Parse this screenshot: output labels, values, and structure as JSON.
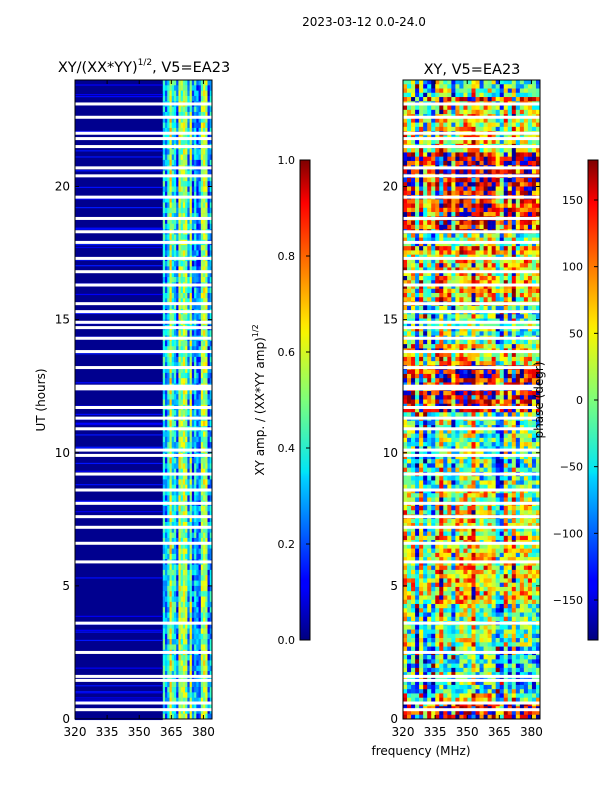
{
  "figure_title": "2023-03-12 0.0-24.0",
  "shared_xlabel": "frequency (MHz)",
  "chart_data": [
    {
      "type": "heatmap",
      "title_main": "XY/(XX*YY)",
      "title_sup": "1/2",
      "title_tail": ", V5=EA23",
      "ylabel": "UT (hours)",
      "xlim": [
        320,
        384
      ],
      "ylim": [
        0,
        24
      ],
      "xticks": [
        320,
        335,
        350,
        365,
        380
      ],
      "yticks": [
        0,
        5,
        10,
        15,
        20
      ],
      "colormap": "jet",
      "colorbar": {
        "label_main": "XY amp. / (XX*YY amp)",
        "label_sup": "1/2",
        "range": [
          0.0,
          1.0
        ],
        "ticks": [
          "0.0",
          "0.2",
          "0.4",
          "0.6",
          "0.8",
          "1.0"
        ],
        "tick_values": [
          0.0,
          0.2,
          0.4,
          0.6,
          0.8,
          1.0
        ]
      },
      "signal_band_mhz": [
        361,
        384
      ],
      "gap_hours": [
        0.35,
        0.6,
        1.45,
        1.6,
        2.5,
        3.6,
        5.9,
        6.6,
        7.2,
        7.6,
        8.1,
        8.6,
        9.2,
        9.9,
        10.1,
        10.9,
        11.3,
        11.7,
        12.4,
        12.5,
        13.2,
        13.8,
        14.3,
        14.7,
        14.9,
        15.3,
        15.6,
        16.3,
        16.8,
        17.3,
        17.9,
        18.3,
        18.8,
        19.6,
        20.4,
        20.7,
        21.5,
        21.8,
        22.0,
        22.6,
        23.1
      ]
    },
    {
      "type": "heatmap",
      "title": "XY, V5=EA23",
      "xlim": [
        320,
        384
      ],
      "ylim": [
        0,
        24
      ],
      "xticks": [
        320,
        335,
        350,
        365,
        380
      ],
      "yticks": [
        0,
        5,
        10,
        15,
        20
      ],
      "colormap": "jet",
      "colorbar": {
        "label": "phase (degr)",
        "range": [
          -180,
          180
        ],
        "ticks": [
          "−150",
          "−100",
          "−50",
          "0",
          "50",
          "100",
          "150"
        ],
        "tick_values": [
          -150,
          -100,
          -50,
          0,
          50,
          100,
          150
        ]
      },
      "gap_hours": [
        0.35,
        0.6,
        1.45,
        1.6,
        2.5,
        3.6,
        5.9,
        6.6,
        7.2,
        7.6,
        8.1,
        8.6,
        9.2,
        9.9,
        10.1,
        10.9,
        11.3,
        11.7,
        12.4,
        12.5,
        13.2,
        13.8,
        14.3,
        14.7,
        14.9,
        15.3,
        15.6,
        16.3,
        16.8,
        17.3,
        17.9,
        18.3,
        18.8,
        19.6,
        20.4,
        20.7,
        21.5,
        21.8,
        22.0,
        22.6,
        23.1
      ]
    }
  ]
}
